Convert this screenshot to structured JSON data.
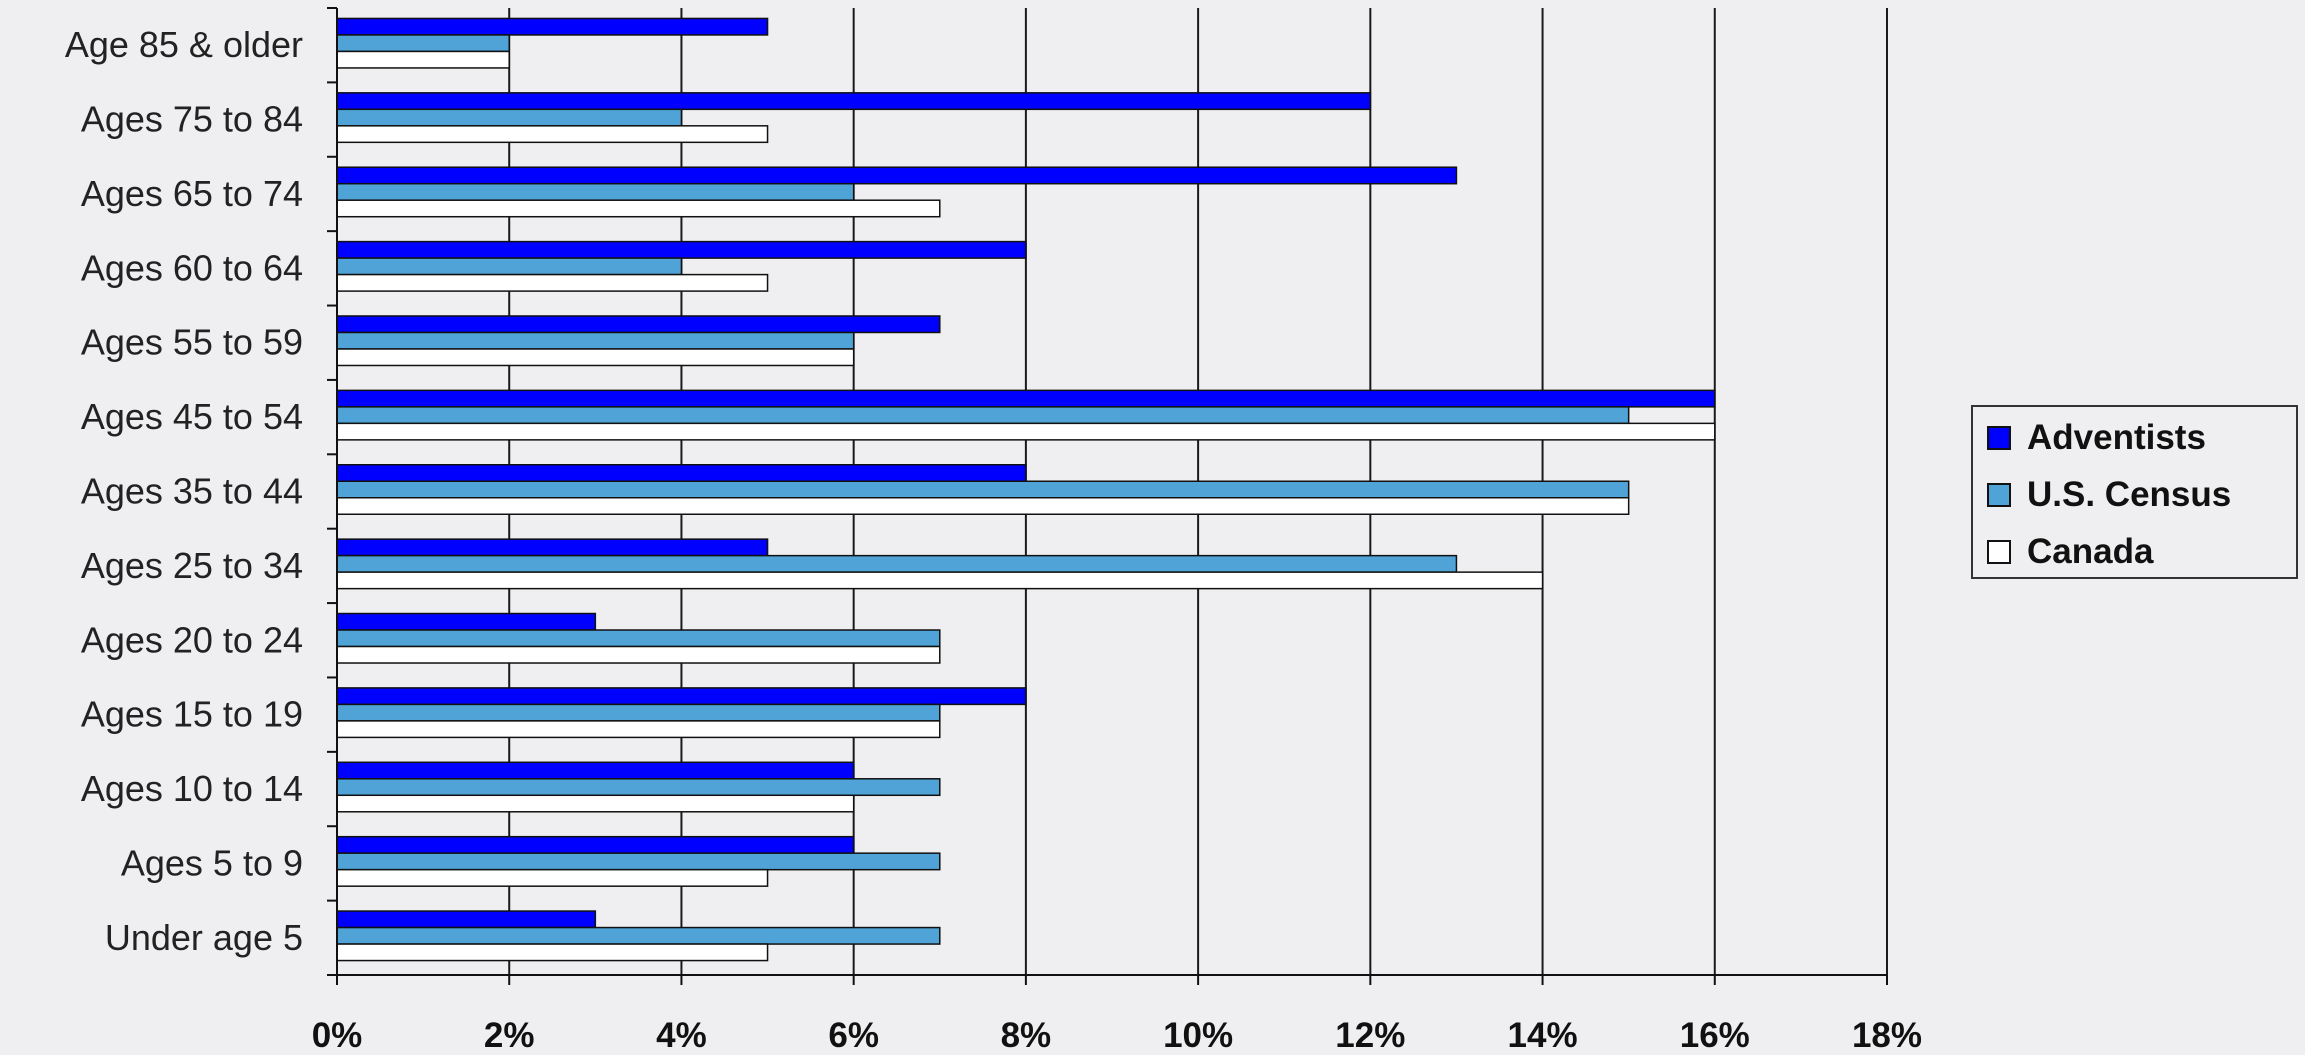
{
  "chart_data": {
    "type": "bar",
    "orientation": "horizontal",
    "categories": [
      "Age 85 & older",
      "Ages 75 to 84",
      "Ages 65 to 74",
      "Ages 60 to 64",
      "Ages 55 to 59",
      "Ages 45 to 54",
      "Ages 35 to 44",
      "Ages 25 to 34",
      "Ages 20 to 24",
      "Ages 15 to 19",
      "Ages 10 to 14",
      "Ages 5 to 9",
      "Under age 5"
    ],
    "series": [
      {
        "name": "Adventists",
        "color": "#0000ff",
        "values": [
          5,
          12,
          13,
          8,
          7,
          16,
          8,
          5,
          3,
          8,
          6,
          6,
          3
        ]
      },
      {
        "name": "U.S. Census",
        "color": "#4fa3d6",
        "values": [
          2,
          4,
          6,
          4,
          6,
          15,
          15,
          13,
          7,
          7,
          7,
          7,
          7
        ]
      },
      {
        "name": "Canada",
        "color": "#ffffff",
        "values": [
          2,
          5,
          7,
          5,
          6,
          16,
          15,
          14,
          7,
          7,
          6,
          5,
          5
        ]
      }
    ],
    "x_ticks": [
      "0%",
      "2%",
      "4%",
      "6%",
      "8%",
      "10%",
      "12%",
      "14%",
      "16%",
      "18%"
    ],
    "xlim": [
      0,
      18
    ],
    "unit": "%",
    "title": "",
    "xlabel": "",
    "ylabel": "",
    "grid": true,
    "legend_position": "right"
  }
}
